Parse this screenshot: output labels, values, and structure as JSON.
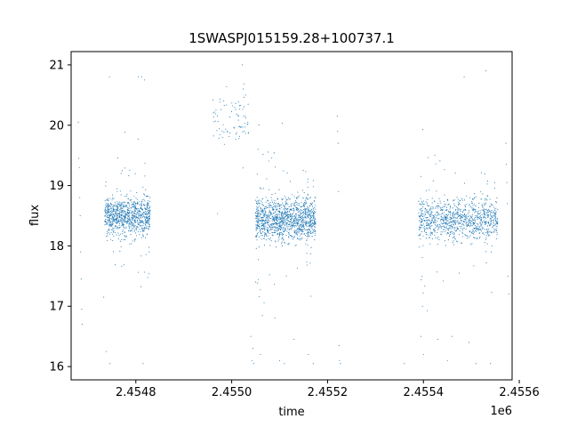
{
  "chart_data": {
    "type": "scatter",
    "title": "1SWASPJ015159.28+100737.1",
    "xlabel": "time",
    "ylabel": "flux",
    "x_offset_label": "1e6",
    "xlim": [
      2454665,
      2455585
    ],
    "ylim": [
      15.78,
      21.22
    ],
    "x_ticks": [
      2454800,
      2455000,
      2455200,
      2455400,
      2455600
    ],
    "x_tick_labels": [
      "2.4548",
      "2.4550",
      "2.4552",
      "2.4554",
      "2.4556"
    ],
    "y_ticks": [
      16,
      17,
      18,
      19,
      20,
      21
    ],
    "y_tick_labels": [
      "16",
      "17",
      "18",
      "19",
      "20",
      "21"
    ],
    "grid": false,
    "color": "#1f77b4",
    "clusters": [
      {
        "x_start": 2454735,
        "x_end": 2454830,
        "y_center": 18.5,
        "y_spread": 0.35,
        "points": 900
      },
      {
        "x_start": 2454960,
        "x_end": 2455035,
        "y_center": 20.1,
        "y_spread": 0.45,
        "points": 80
      },
      {
        "x_start": 2455050,
        "x_end": 2455175,
        "y_center": 18.45,
        "y_spread": 0.4,
        "points": 1300
      },
      {
        "x_start": 2455390,
        "x_end": 2455555,
        "y_center": 18.45,
        "y_spread": 0.38,
        "points": 1000
      }
    ],
    "scattered_points": [
      {
        "x": 2454680,
        "y": 20.05
      },
      {
        "x": 2454681,
        "y": 19.45
      },
      {
        "x": 2454682,
        "y": 19.3
      },
      {
        "x": 2454683,
        "y": 18.8
      },
      {
        "x": 2454684,
        "y": 18.5
      },
      {
        "x": 2454685,
        "y": 17.9
      },
      {
        "x": 2454686,
        "y": 17.45
      },
      {
        "x": 2454687,
        "y": 16.95
      },
      {
        "x": 2454688,
        "y": 16.7
      },
      {
        "x": 2454733,
        "y": 17.15
      },
      {
        "x": 2454738,
        "y": 16.25
      },
      {
        "x": 2454745,
        "y": 20.8
      },
      {
        "x": 2454746,
        "y": 16.05
      },
      {
        "x": 2454805,
        "y": 20.8
      },
      {
        "x": 2454812,
        "y": 20.8
      },
      {
        "x": 2454815,
        "y": 16.05
      },
      {
        "x": 2454818,
        "y": 20.75
      },
      {
        "x": 2455022,
        "y": 21.0
      },
      {
        "x": 2455024,
        "y": 20.6
      },
      {
        "x": 2455040,
        "y": 16.5
      },
      {
        "x": 2455042,
        "y": 16.1
      },
      {
        "x": 2455044,
        "y": 16.3
      },
      {
        "x": 2455046,
        "y": 16.05
      },
      {
        "x": 2455050,
        "y": 17.4
      },
      {
        "x": 2455055,
        "y": 19.6
      },
      {
        "x": 2455060,
        "y": 16.2
      },
      {
        "x": 2455090,
        "y": 16.8
      },
      {
        "x": 2455100,
        "y": 16.1
      },
      {
        "x": 2455110,
        "y": 16.05
      },
      {
        "x": 2455130,
        "y": 16.45
      },
      {
        "x": 2455160,
        "y": 16.2
      },
      {
        "x": 2455170,
        "y": 16.05
      },
      {
        "x": 2455220,
        "y": 20.15
      },
      {
        "x": 2455221,
        "y": 19.9
      },
      {
        "x": 2455222,
        "y": 19.7
      },
      {
        "x": 2455223,
        "y": 18.9
      },
      {
        "x": 2455224,
        "y": 16.35
      },
      {
        "x": 2455225,
        "y": 16.1
      },
      {
        "x": 2455227,
        "y": 16.05
      },
      {
        "x": 2455360,
        "y": 16.05
      },
      {
        "x": 2455395,
        "y": 16.5
      },
      {
        "x": 2455398,
        "y": 17.0
      },
      {
        "x": 2455400,
        "y": 16.2
      },
      {
        "x": 2455430,
        "y": 16.45
      },
      {
        "x": 2455450,
        "y": 16.1
      },
      {
        "x": 2455460,
        "y": 16.5
      },
      {
        "x": 2455485,
        "y": 20.8
      },
      {
        "x": 2455495,
        "y": 16.4
      },
      {
        "x": 2455510,
        "y": 16.05
      },
      {
        "x": 2455530,
        "y": 20.9
      },
      {
        "x": 2455540,
        "y": 16.05
      },
      {
        "x": 2455572,
        "y": 19.7
      },
      {
        "x": 2455573,
        "y": 19.35
      },
      {
        "x": 2455574,
        "y": 19.05
      },
      {
        "x": 2455575,
        "y": 18.7
      },
      {
        "x": 2455576,
        "y": 17.5
      },
      {
        "x": 2455578,
        "y": 17.2
      }
    ]
  }
}
